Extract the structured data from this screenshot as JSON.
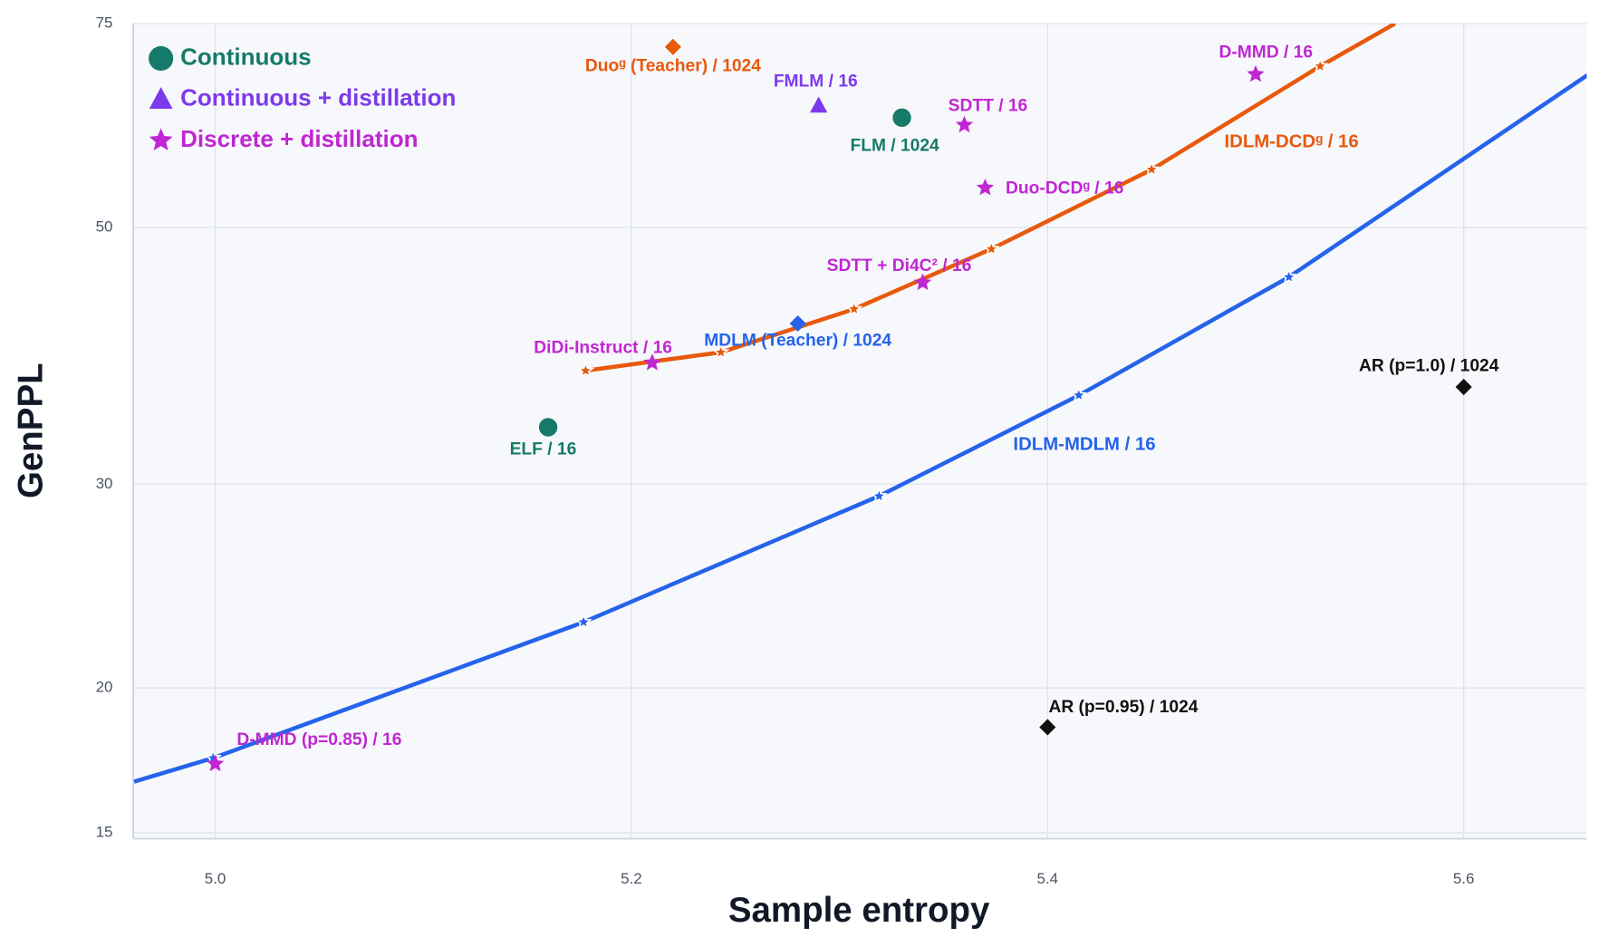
{
  "chart_data": {
    "type": "scatter",
    "xlabel": "Sample entropy",
    "ylabel": "GenPPL",
    "xlim": [
      4.9606,
      5.6591
    ],
    "ylim": [
      14.82,
      75
    ],
    "xticks": [
      {
        "value": 5.0,
        "label": "5.0"
      },
      5.2,
      5.4,
      5.6
    ],
    "yticks": [
      15,
      20,
      30,
      50,
      75
    ],
    "log_y": true,
    "grid": true,
    "legend": {
      "position": "upper left",
      "entries": [
        {
          "name": "Continuous",
          "color": "#167a6a",
          "marker": "circle"
        },
        {
          "name": "Continuous + distillation",
          "color": "#7c3aed",
          "marker": "triangle"
        },
        {
          "name": "Discrete + distillation",
          "color": "#c026d3",
          "marker": "star"
        }
      ]
    },
    "curves": [
      {
        "name": "IDLM-DCDᵍ / 16",
        "color": "#e8590c",
        "x": [
          5.178,
          5.243,
          5.307,
          5.373,
          5.45,
          5.531,
          5.567
        ],
        "values": [
          37.6,
          39.0,
          42.5,
          47.9,
          56.1,
          68.9,
          75
        ],
        "markers": [
          true,
          true,
          true,
          true,
          true,
          true,
          false
        ]
      },
      {
        "name": "IDLM-MDLM / 16",
        "color": "#2563eb",
        "x": [
          4.961,
          4.999,
          5.177,
          5.319,
          5.415,
          5.516,
          5.66
        ],
        "values": [
          16.6,
          17.4,
          22.8,
          29.3,
          35.8,
          45.3,
          67.8
        ],
        "markers": [
          false,
          true,
          true,
          true,
          true,
          true,
          false
        ]
      }
    ],
    "points": [
      {
        "label": "Duoᵍ (Teacher) / 1024",
        "x": 5.22,
        "y": 71.6,
        "color": "#e8590c",
        "marker": "diamond"
      },
      {
        "label": "FMLM / 16",
        "x": 5.29,
        "y": 63.7,
        "color": "#7c3aed",
        "marker": "triangle"
      },
      {
        "label": "FLM / 1024",
        "x": 5.33,
        "y": 62.2,
        "color": "#167a6a",
        "marker": "circle"
      },
      {
        "label": "SDTT / 16",
        "x": 5.36,
        "y": 61.3,
        "color": "#c026d3",
        "marker": "star"
      },
      {
        "label": "D-MMD / 16",
        "x": 5.5,
        "y": 67.8,
        "color": "#c026d3",
        "marker": "star"
      },
      {
        "label": "Duo-DCDᵍ / 16",
        "x": 5.37,
        "y": 54.1,
        "color": "#c026d3",
        "marker": "star"
      },
      {
        "label": "SDTT + Di4C² / 16",
        "x": 5.34,
        "y": 44.8,
        "color": "#c026d3",
        "marker": "star"
      },
      {
        "label": "MDLM (Teacher) / 1024",
        "x": 5.28,
        "y": 41.3,
        "color": "#2563eb",
        "marker": "diamond"
      },
      {
        "label": "DiDi-Instruct / 16",
        "x": 5.21,
        "y": 38.2,
        "color": "#c026d3",
        "marker": "star"
      },
      {
        "label": "ELF / 16",
        "x": 5.16,
        "y": 33.6,
        "color": "#167a6a",
        "marker": "circle"
      },
      {
        "label": "AR (p=1.0) / 1024",
        "x": 5.6,
        "y": 36.4,
        "color": "#111111",
        "marker": "diamond"
      },
      {
        "label": "AR (p=0.95) / 1024",
        "x": 5.4,
        "y": 18.5,
        "color": "#111111",
        "marker": "diamond"
      },
      {
        "label": "D-MMD (p=0.85) / 16",
        "x": 5.0,
        "y": 17.2,
        "color": "#c026d3",
        "marker": "star"
      }
    ]
  }
}
